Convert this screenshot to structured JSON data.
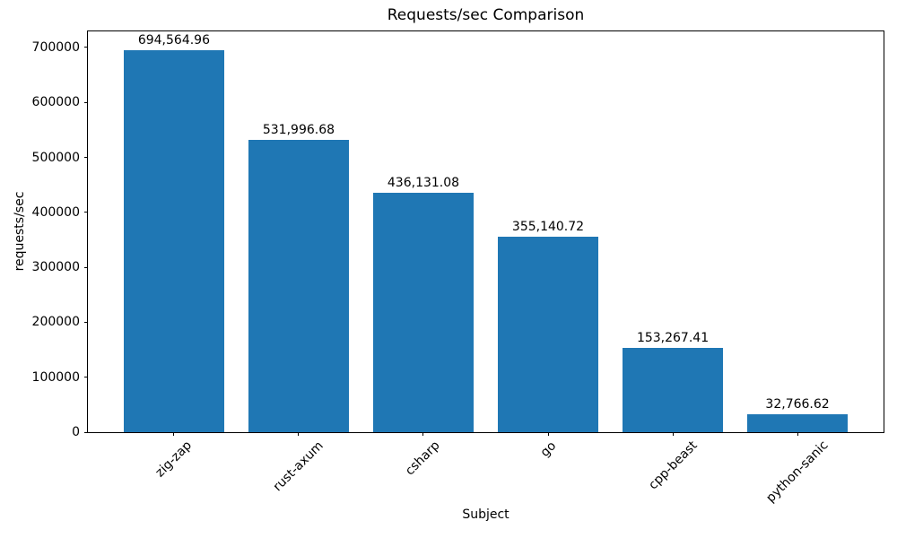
{
  "chart_data": {
    "type": "bar",
    "title": "Requests/sec Comparison",
    "xlabel": "Subject",
    "ylabel": "requests/sec",
    "categories": [
      "zig-zap",
      "rust-axum",
      "csharp",
      "go",
      "cpp-beast",
      "python-sanic"
    ],
    "values": [
      694564.96,
      531996.68,
      436131.08,
      355140.72,
      153267.41,
      32766.62
    ],
    "value_labels": [
      "694,564.96",
      "531,996.68",
      "436,131.08",
      "355,140.72",
      "153,267.41",
      "32,766.62"
    ],
    "yticks": [
      0,
      100000,
      200000,
      300000,
      400000,
      500000,
      600000,
      700000
    ],
    "ytick_labels": [
      "0",
      "100000",
      "200000",
      "300000",
      "400000",
      "500000",
      "600000",
      "700000"
    ],
    "ylim": [
      0,
      729293
    ],
    "xlim": [
      -0.69,
      5.69
    ],
    "bar_width_units": 0.8,
    "bar_color": "#1f77b4",
    "text_color": "#000000",
    "grid": false,
    "legend": null
  }
}
